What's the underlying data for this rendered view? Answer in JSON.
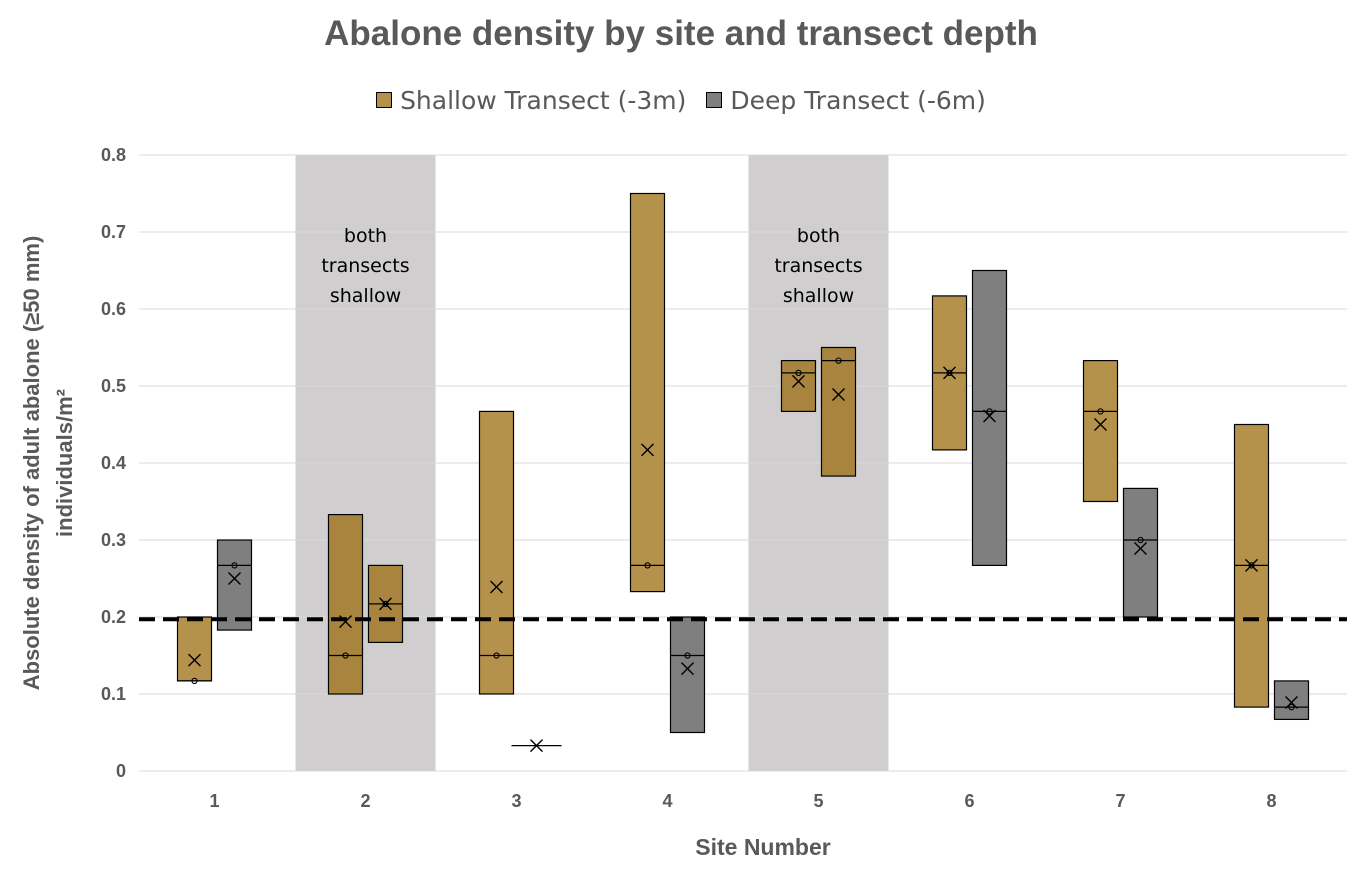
{
  "chart_data": {
    "type": "box",
    "title": "Abalone density by site and transect depth",
    "xlabel": "Site Number",
    "ylabel": [
      "Absolute density of adult abalone (≥50 mm)",
      "individuals/m²"
    ],
    "ylim": [
      0,
      0.8
    ],
    "yticks": [
      "0",
      "0.1",
      "0.2",
      "0.3",
      "0.4",
      "0.5",
      "0.6",
      "0.7",
      "0.8"
    ],
    "categories": [
      "1",
      "2",
      "3",
      "4",
      "5",
      "6",
      "7",
      "8"
    ],
    "grid": true,
    "legend_position": "top",
    "reference_line": {
      "y": 0.197,
      "style": "dashed"
    },
    "shaded_sites": [
      {
        "site": "2",
        "label": [
          "both",
          "transects",
          "shallow"
        ]
      },
      {
        "site": "5",
        "label": [
          "both",
          "transects",
          "shallow"
        ]
      }
    ],
    "series": [
      {
        "name": "Shallow Transect (-3m)",
        "color": "#b5924c",
        "boxes": [
          {
            "site": "1",
            "min": 0.117,
            "max": 0.2,
            "median": 0.117,
            "mean": 0.144
          },
          {
            "site": "2",
            "min": 0.1,
            "max": 0.333,
            "median": 0.15,
            "mean": 0.194
          },
          {
            "site": "3",
            "min": 0.1,
            "max": 0.467,
            "median": 0.15,
            "mean": 0.239
          },
          {
            "site": "4",
            "min": 0.233,
            "max": 0.75,
            "median": 0.267,
            "mean": 0.417
          },
          {
            "site": "5",
            "min": 0.467,
            "max": 0.533,
            "median": 0.517,
            "mean": 0.506
          },
          {
            "site": "6",
            "min": 0.417,
            "max": 0.617,
            "median": 0.517,
            "mean": 0.517
          },
          {
            "site": "7",
            "min": 0.35,
            "max": 0.533,
            "median": 0.467,
            "mean": 0.45
          },
          {
            "site": "8",
            "min": 0.083,
            "max": 0.45,
            "median": 0.267,
            "mean": 0.267
          }
        ]
      },
      {
        "name": "Deep Transect (-6m)",
        "color": "#7f7f7f",
        "boxes": [
          {
            "site": "1",
            "min": 0.183,
            "max": 0.3,
            "median": 0.267,
            "mean": 0.25
          },
          {
            "site": "2",
            "min": 0.167,
            "max": 0.267,
            "median": 0.217,
            "mean": 0.217
          },
          {
            "site": "3",
            "min": 0.033,
            "max": 0.033,
            "median": 0.033,
            "mean": 0.033
          },
          {
            "site": "4",
            "min": 0.05,
            "max": 0.2,
            "median": 0.15,
            "mean": 0.133
          },
          {
            "site": "5",
            "min": 0.383,
            "max": 0.55,
            "median": 0.533,
            "mean": 0.489
          },
          {
            "site": "6",
            "min": 0.267,
            "max": 0.65,
            "median": 0.467,
            "mean": 0.461
          },
          {
            "site": "7",
            "min": 0.2,
            "max": 0.367,
            "median": 0.3,
            "mean": 0.289
          },
          {
            "site": "8",
            "min": 0.067,
            "max": 0.117,
            "median": 0.083,
            "mean": 0.089
          }
        ]
      }
    ]
  },
  "box_fill_overrides": {
    "shaded_site_shallow": "#a8843f",
    "shaded_site_deep": "#a8843f"
  }
}
